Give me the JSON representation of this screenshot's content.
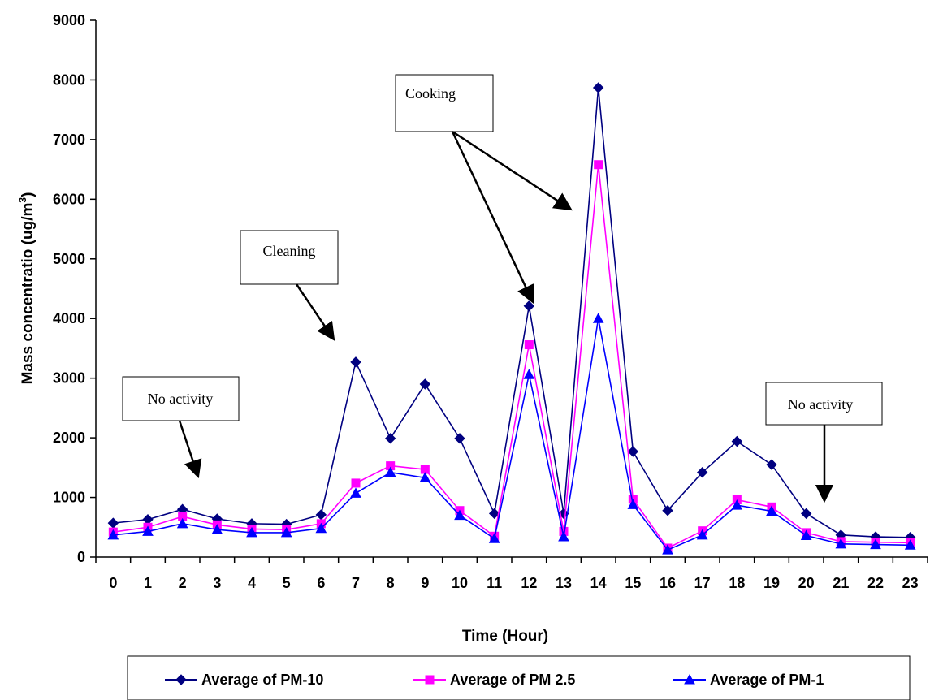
{
  "chart_data": {
    "type": "line",
    "title": "",
    "xlabel": "Time (Hour)",
    "ylabel": "Mass concentratio (ug/m3)",
    "ylabel_parts": {
      "main": "Mass concentratio (ug/m",
      "sup": "3",
      "end": ")"
    },
    "ylim": [
      0,
      9000
    ],
    "yticks": [
      0,
      1000,
      2000,
      3000,
      4000,
      5000,
      6000,
      7000,
      8000,
      9000
    ],
    "categories": [
      "0",
      "1",
      "2",
      "3",
      "4",
      "5",
      "6",
      "7",
      "8",
      "9",
      "10",
      "11",
      "12",
      "13",
      "14",
      "15",
      "16",
      "17",
      "18",
      "19",
      "20",
      "21",
      "22",
      "23"
    ],
    "grid": false,
    "legend_position": "bottom",
    "series": [
      {
        "name": "Average of PM-10",
        "color": "#000080",
        "marker": "diamond",
        "values": [
          570,
          630,
          800,
          640,
          560,
          550,
          710,
          3270,
          1990,
          2900,
          1990,
          730,
          4210,
          730,
          7870,
          1770,
          780,
          1420,
          1940,
          1550,
          730,
          370,
          340,
          330
        ]
      },
      {
        "name": "Average of PM 2.5",
        "color": "#FF00FF",
        "marker": "square",
        "values": [
          420,
          500,
          680,
          540,
          470,
          460,
          560,
          1240,
          1530,
          1470,
          780,
          350,
          3560,
          430,
          6580,
          970,
          150,
          440,
          960,
          840,
          410,
          260,
          250,
          240
        ]
      },
      {
        "name": "Average of PM-1",
        "color": "#0000FF",
        "marker": "triangle",
        "values": [
          370,
          430,
          560,
          460,
          410,
          410,
          480,
          1070,
          1420,
          1330,
          700,
          310,
          3060,
          340,
          4000,
          880,
          120,
          370,
          870,
          770,
          360,
          220,
          210,
          200
        ]
      }
    ],
    "annotations": [
      {
        "id": "no-activity-1",
        "text": "No activity"
      },
      {
        "id": "cleaning",
        "text": "Cleaning"
      },
      {
        "id": "cooking",
        "text": "Cooking"
      },
      {
        "id": "no-activity-2",
        "text": "No activity"
      }
    ]
  }
}
